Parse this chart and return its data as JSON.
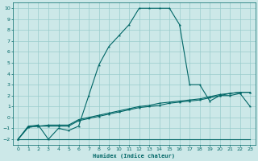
{
  "xlabel": "Humidex (Indice chaleur)",
  "background_color": "#cce8e8",
  "grid_color": "#99cccc",
  "line_color": "#006666",
  "xlim": [
    -0.5,
    23.5
  ],
  "ylim": [
    -2.5,
    10.5
  ],
  "xticks": [
    0,
    1,
    2,
    3,
    4,
    5,
    6,
    7,
    8,
    9,
    10,
    11,
    12,
    13,
    14,
    15,
    16,
    17,
    18,
    19,
    20,
    21,
    22,
    23
  ],
  "yticks": [
    -2,
    -1,
    0,
    1,
    2,
    3,
    4,
    5,
    6,
    7,
    8,
    9,
    10
  ],
  "series1_x": [
    0,
    1,
    2,
    3,
    4,
    5,
    6,
    7,
    8,
    9,
    10,
    11,
    12,
    13,
    14,
    15,
    16,
    17,
    18,
    19,
    20,
    21,
    22,
    23
  ],
  "series1_y": [
    -2,
    -0.8,
    -0.7,
    -2,
    -1,
    -1.2,
    -0.8,
    2,
    4.8,
    6.5,
    7.5,
    8.5,
    10,
    10,
    10,
    10,
    8.5,
    3,
    3,
    1.5,
    2,
    2,
    2.2,
    1.0
  ],
  "series2_x": [
    0,
    1,
    2,
    3,
    4,
    5,
    6,
    7,
    8,
    9,
    10,
    11,
    12,
    13,
    14,
    15,
    16,
    17,
    18,
    23
  ],
  "series2_y": [
    -2,
    -2,
    -2,
    -2,
    -2,
    -2,
    -2,
    -2,
    -2,
    -2,
    -2,
    -2,
    -2,
    -2,
    -2,
    -2,
    -2,
    -2,
    -2,
    -2
  ],
  "series3_x": [
    0,
    1,
    2,
    3,
    4,
    5,
    6,
    7,
    8,
    9,
    10,
    11,
    12,
    13,
    14,
    15,
    16,
    17,
    18,
    19,
    20,
    21,
    22,
    23
  ],
  "series3_y": [
    -2,
    -0.9,
    -0.8,
    -0.8,
    -0.8,
    -0.8,
    -0.3,
    -0.1,
    0.1,
    0.3,
    0.5,
    0.7,
    0.9,
    1.0,
    1.1,
    1.3,
    1.4,
    1.5,
    1.6,
    1.8,
    2.0,
    2.2,
    2.3,
    2.3
  ],
  "series4_x": [
    0,
    1,
    2,
    3,
    4,
    5,
    6,
    7,
    8,
    9,
    10,
    11,
    12,
    13,
    14,
    15,
    16,
    17,
    18,
    19,
    20,
    21,
    22,
    23
  ],
  "series4_y": [
    -2,
    -0.9,
    -0.8,
    -0.7,
    -0.7,
    -0.7,
    -0.2,
    0.0,
    0.2,
    0.4,
    0.6,
    0.8,
    1.0,
    1.1,
    1.3,
    1.4,
    1.5,
    1.6,
    1.7,
    1.9,
    2.1,
    2.2,
    2.3,
    2.3
  ]
}
